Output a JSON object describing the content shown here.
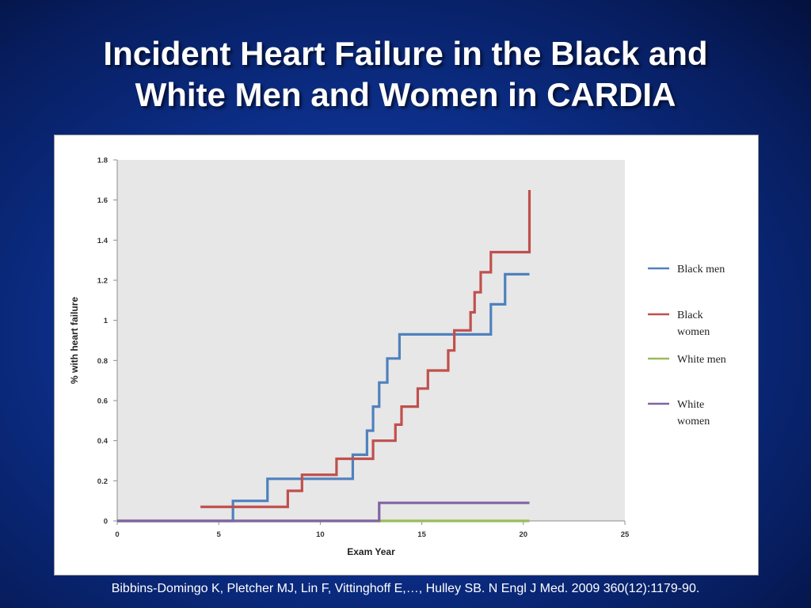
{
  "slide": {
    "title_line1": "Incident Heart Failure in the Black and",
    "title_line2": "White Men and Women in CARDIA",
    "citation": "Bibbins-Domingo K, Pletcher MJ, Lin F, Vittinghoff E,…, Hulley SB. N Engl J Med. 2009 360(12):1179-90."
  },
  "chart_data": {
    "type": "line",
    "step": true,
    "title": "",
    "xlabel": "Exam Year",
    "ylabel": "% with heart failure",
    "xlim": [
      0,
      25
    ],
    "ylim": [
      0,
      1.8
    ],
    "xticks": [
      "0",
      "5",
      "10",
      "15",
      "20",
      "25"
    ],
    "yticks": [
      "0",
      "0.2",
      "0.4",
      "0.6",
      "0.8",
      "1",
      "1.2",
      "1.4",
      "1.6",
      "1.8"
    ],
    "plot_background": "#e7e7e7",
    "grid": false,
    "legend_position": "right",
    "series": [
      {
        "name": "Black men",
        "color": "#4f81bd",
        "x": [
          0,
          5.7,
          7.4,
          11.6,
          12.3,
          12.6,
          12.9,
          13.3,
          13.9,
          18.4,
          19.1,
          20.3
        ],
        "y": [
          0,
          0.1,
          0.21,
          0.33,
          0.45,
          0.57,
          0.69,
          0.81,
          0.93,
          1.08,
          1.23,
          1.23
        ]
      },
      {
        "name": "Black women",
        "color": "#c0504d",
        "x": [
          4.1,
          8.4,
          9.1,
          10.8,
          12.6,
          13.7,
          14.0,
          14.8,
          15.3,
          16.3,
          16.6,
          17.4,
          17.6,
          17.9,
          18.4,
          20.3
        ],
        "y": [
          0.07,
          0.15,
          0.23,
          0.31,
          0.4,
          0.48,
          0.57,
          0.66,
          0.75,
          0.85,
          0.95,
          1.04,
          1.14,
          1.24,
          1.34,
          1.65
        ]
      },
      {
        "name": "White men",
        "color": "#9bbb59",
        "x": [
          0,
          20.3
        ],
        "y": [
          0,
          0
        ]
      },
      {
        "name": "White women",
        "color": "#8064a2",
        "x": [
          0,
          12.9,
          20.3
        ],
        "y": [
          0,
          0.09,
          0.09
        ]
      }
    ],
    "legend": [
      {
        "line1": "Black men",
        "line2": ""
      },
      {
        "line1": "Black",
        "line2": "women"
      },
      {
        "line1": "White men",
        "line2": ""
      },
      {
        "line1": "White",
        "line2": "women"
      }
    ]
  }
}
